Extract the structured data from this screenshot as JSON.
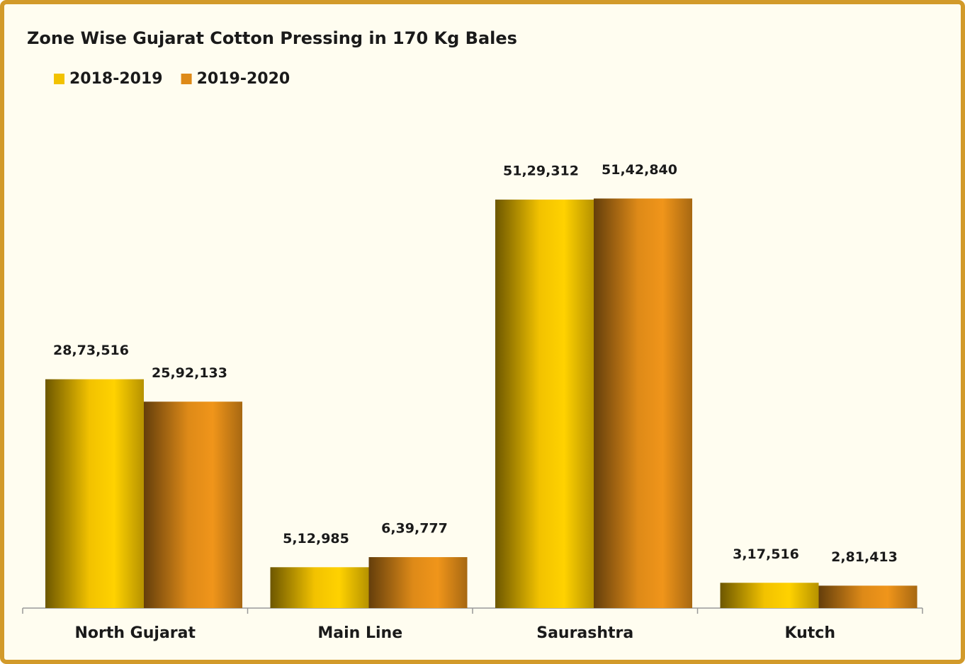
{
  "chart_data": {
    "type": "bar",
    "title": "Zone Wise Gujarat Cotton Pressing in 170 Kg Bales",
    "categories": [
      "North Gujarat",
      "Main Line",
      "Saurashtra",
      "Kutch"
    ],
    "series": [
      {
        "name": "2018-2019",
        "color": "#f2c200",
        "values": [
          2873516,
          512985,
          5129312,
          317516
        ],
        "value_labels": [
          "28,73,516",
          "5,12,985",
          "51,29,312",
          "3,17,516"
        ]
      },
      {
        "name": "2019-2020",
        "color": "#de8a18",
        "values": [
          2592133,
          639777,
          5142840,
          281413
        ],
        "value_labels": [
          "25,92,133",
          "6,39,777",
          "51,42,840",
          "2,81,413"
        ]
      }
    ],
    "ylim": [
      0,
      6000000
    ],
    "legend": "top-left"
  }
}
